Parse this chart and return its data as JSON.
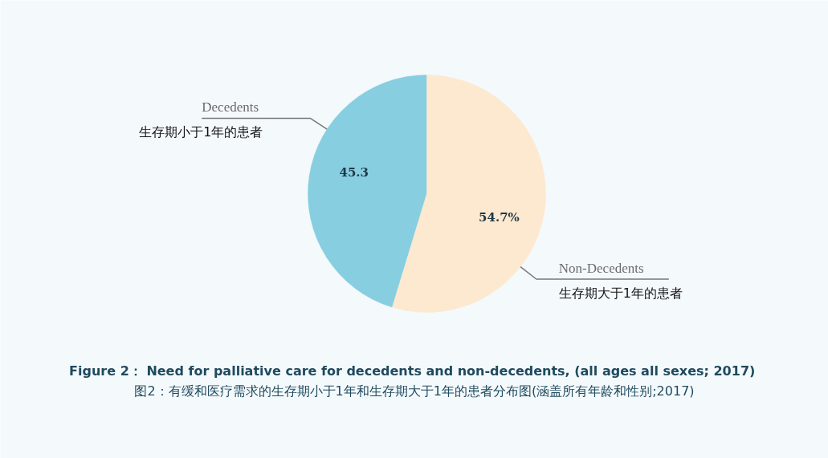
{
  "chart_data": {
    "type": "pie",
    "title": "Figure 2：  Need for palliative care for decedents and non-decedents, (all ages all sexes; 2017)",
    "subtitle": "图2：有缓和医疗需求的生存期小于1年和生存期大于1年的患者分布图(涵盖所有年龄和性别;2017)",
    "categories": [
      "Decedents\n生存期小于1年的患者",
      "Non-Decedents\n生存期大于1年的患者"
    ],
    "values": [
      45.3,
      54.7
    ],
    "colors": [
      "#87cee1",
      "#fde9cf"
    ],
    "value_labels": [
      "45.3",
      "54.7%"
    ]
  }
}
